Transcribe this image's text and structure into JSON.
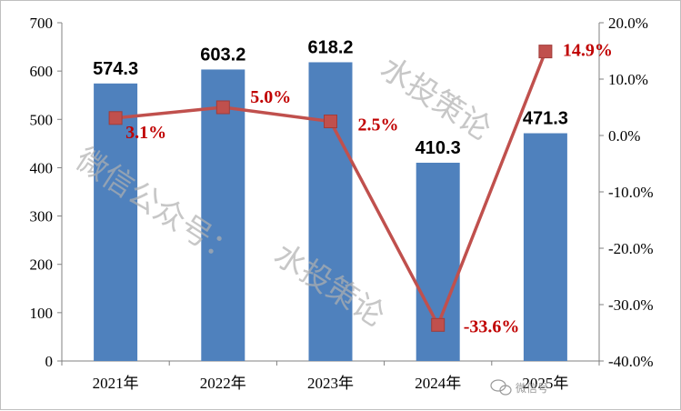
{
  "chart_data": {
    "type": "bar",
    "categories": [
      "2021年",
      "2022年",
      "2023年",
      "2024年",
      "2025年"
    ],
    "series": [
      {
        "type": "bar",
        "axis": "left",
        "values": [
          574.3,
          603.2,
          618.2,
          410.3,
          471.3
        ],
        "labels": [
          "574.3",
          "603.2",
          "618.2",
          "410.3",
          "471.3"
        ],
        "color": "#4f81bd"
      },
      {
        "type": "line",
        "axis": "right",
        "values": [
          3.1,
          5.0,
          2.5,
          -33.6,
          14.9
        ],
        "labels": [
          "3.1%",
          "5.0%",
          "2.5%",
          "-33.6%",
          "14.9%"
        ],
        "color": "#c0504d",
        "marker": "square"
      }
    ],
    "ylim_left": [
      0,
      700
    ],
    "yticks_left": [
      "0",
      "100",
      "200",
      "300",
      "400",
      "500",
      "600",
      "700"
    ],
    "ylim_right": [
      -40,
      20
    ],
    "yticks_right": [
      "-40.0%",
      "-30.0%",
      "-20.0%",
      "-10.0%",
      "0.0%",
      "10.0%",
      "20.0%"
    ],
    "grid": false,
    "legend": "none",
    "watermark": {
      "diagonal": [
        "微信公众号：",
        "水投策论",
        "水投策论"
      ],
      "badge": "微信号"
    },
    "title": "",
    "xlabel": "",
    "ylabel": ""
  }
}
